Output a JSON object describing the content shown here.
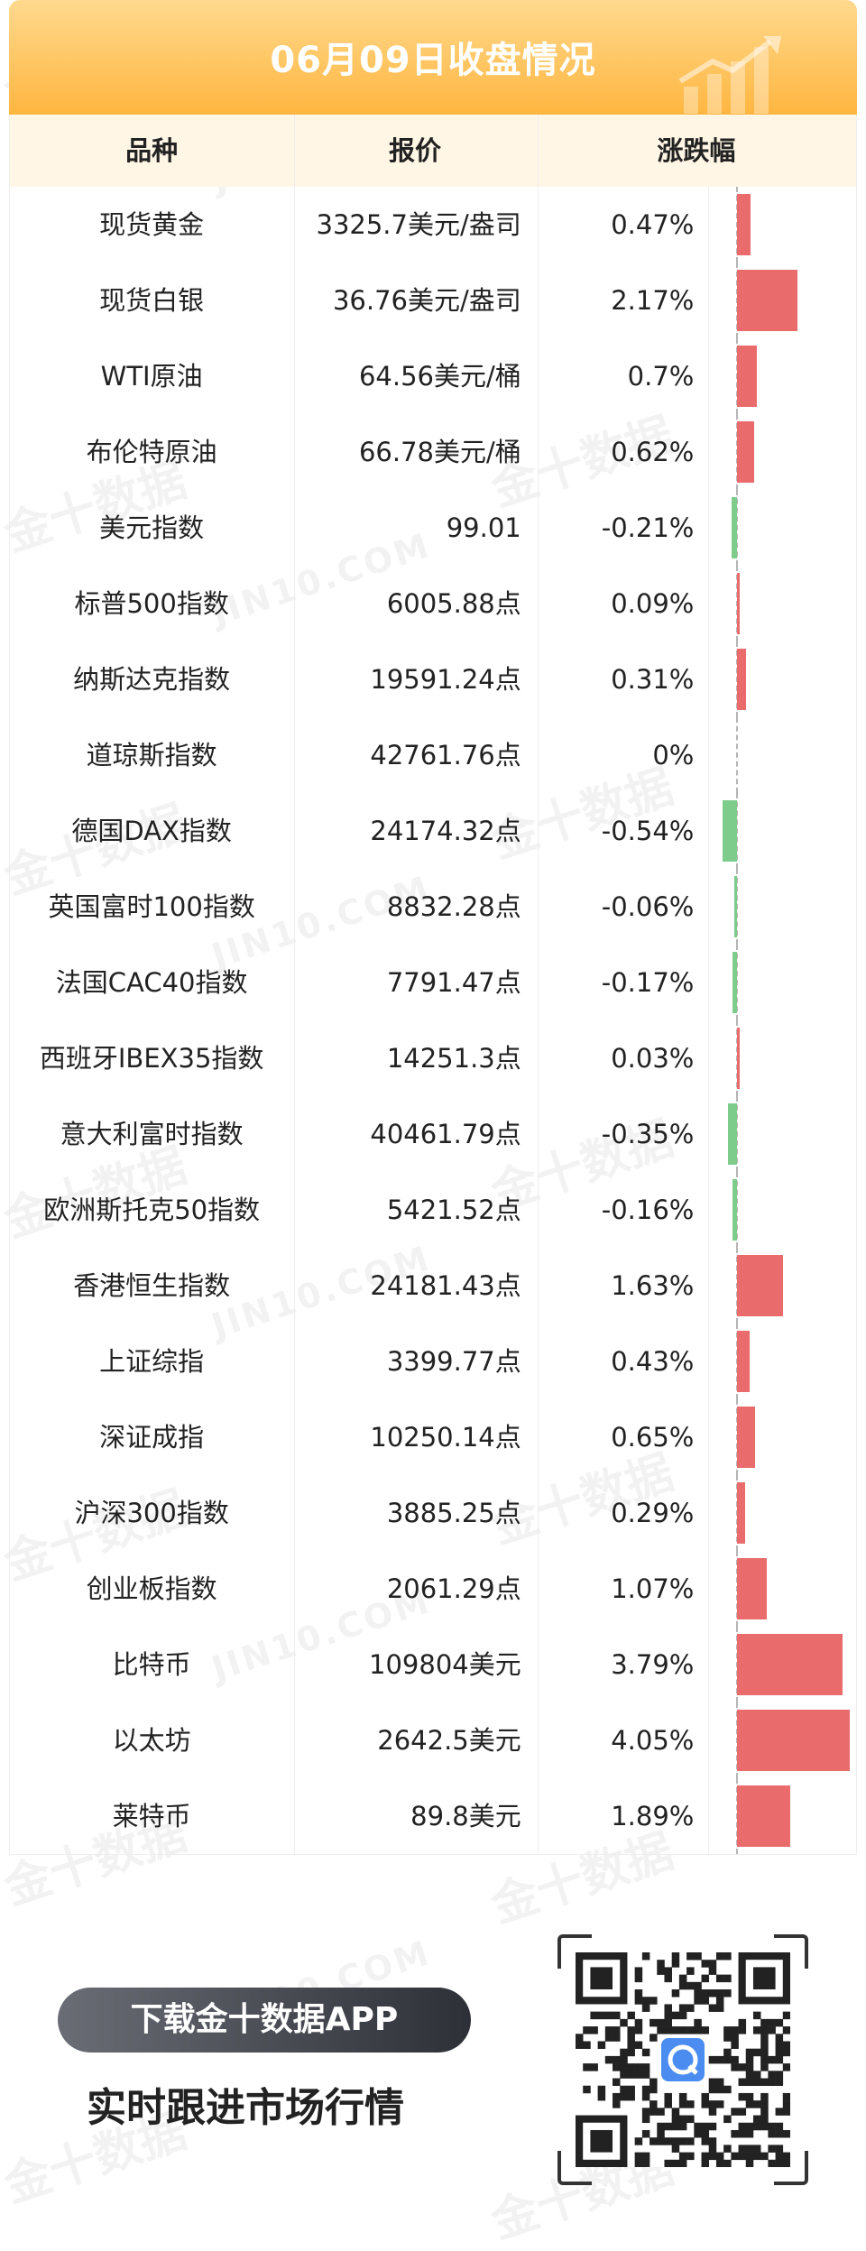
{
  "header": {
    "title": "06月09日收盘情况"
  },
  "table": {
    "columns": [
      "品种",
      "报价",
      "涨跌幅"
    ],
    "rows": [
      {
        "name": "现货黄金",
        "price": "3325.7美元/盎司",
        "change": "0.47%",
        "value": 0.47
      },
      {
        "name": "现货白银",
        "price": "36.76美元/盎司",
        "change": "2.17%",
        "value": 2.17
      },
      {
        "name": "WTI原油",
        "price": "64.56美元/桶",
        "change": "0.7%",
        "value": 0.7
      },
      {
        "name": "布伦特原油",
        "price": "66.78美元/桶",
        "change": "0.62%",
        "value": 0.62
      },
      {
        "name": "美元指数",
        "price": "99.01",
        "change": "-0.21%",
        "value": -0.21
      },
      {
        "name": "标普500指数",
        "price": "6005.88点",
        "change": "0.09%",
        "value": 0.09
      },
      {
        "name": "纳斯达克指数",
        "price": "19591.24点",
        "change": "0.31%",
        "value": 0.31
      },
      {
        "name": "道琼斯指数",
        "price": "42761.76点",
        "change": "0%",
        "value": 0
      },
      {
        "name": "德国DAX指数",
        "price": "24174.32点",
        "change": "-0.54%",
        "value": -0.54
      },
      {
        "name": "英国富时100指数",
        "price": "8832.28点",
        "change": "-0.06%",
        "value": -0.06
      },
      {
        "name": "法国CAC40指数",
        "price": "7791.47点",
        "change": "-0.17%",
        "value": -0.17
      },
      {
        "name": "西班牙IBEX35指数",
        "price": "14251.3点",
        "change": "0.03%",
        "value": 0.03
      },
      {
        "name": "意大利富时指数",
        "price": "40461.79点",
        "change": "-0.35%",
        "value": -0.35
      },
      {
        "name": "欧洲斯托克50指数",
        "price": "5421.52点",
        "change": "-0.16%",
        "value": -0.16
      },
      {
        "name": "香港恒生指数",
        "price": "24181.43点",
        "change": "1.63%",
        "value": 1.63
      },
      {
        "name": "上证综指",
        "price": "3399.77点",
        "change": "0.43%",
        "value": 0.43
      },
      {
        "name": "深证成指",
        "price": "10250.14点",
        "change": "0.65%",
        "value": 0.65
      },
      {
        "name": "沪深300指数",
        "price": "3885.25点",
        "change": "0.29%",
        "value": 0.29
      },
      {
        "name": "创业板指数",
        "price": "2061.29点",
        "change": "1.07%",
        "value": 1.07
      },
      {
        "name": "比特币",
        "price": "109804美元",
        "change": "3.79%",
        "value": 3.79
      },
      {
        "name": "以太坊",
        "price": "2642.5美元",
        "change": "4.05%",
        "value": 4.05
      },
      {
        "name": "莱特币",
        "price": "89.8美元",
        "change": "1.89%",
        "value": 1.89
      }
    ]
  },
  "colors": {
    "up": "#e96b6b",
    "down": "#7dcc8c",
    "header": "#ffb640"
  },
  "footer": {
    "download_label": "下载金十数据APP",
    "tagline": "实时跟进市场行情",
    "qr_icon": "qr-code-icon"
  },
  "watermark": {
    "cn": "金十数据",
    "en": "JIN10.COM"
  }
}
